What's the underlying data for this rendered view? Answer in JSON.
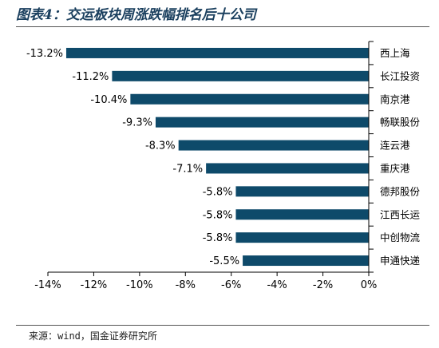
{
  "title": "图表4：交运板块周涨跌幅排名后十公司",
  "source": "来源：wind，国金证券研究所",
  "colors": {
    "bar": "#0e4a6a",
    "axis": "#000000",
    "title": "#1a3f5e"
  },
  "chart_data": {
    "type": "bar",
    "orientation": "horizontal",
    "title": "图表4：交运板块周涨跌幅排名后十公司",
    "xlabel": "",
    "ylabel": "",
    "xlim": [
      -14,
      0
    ],
    "grid": false,
    "legend": "none",
    "categories": [
      "西上海",
      "长江投资",
      "南京港",
      "畅联股份",
      "连云港",
      "重庆港",
      "德邦股份",
      "江西长运",
      "中创物流",
      "申通快递"
    ],
    "values": [
      -13.2,
      -11.2,
      -10.4,
      -9.3,
      -8.3,
      -7.1,
      -5.8,
      -5.8,
      -5.8,
      -5.5
    ],
    "value_labels": [
      "-13.2%",
      "-11.2%",
      "-10.4%",
      "-9.3%",
      "-8.3%",
      "-7.1%",
      "-5.8%",
      "-5.8%",
      "-5.8%",
      "-5.5%"
    ],
    "x_ticks": [
      -14,
      -12,
      -10,
      -8,
      -6,
      -4,
      -2,
      0
    ],
    "x_tick_labels": [
      "-14%",
      "-12%",
      "-10%",
      "-8%",
      "-6%",
      "-4%",
      "-2%",
      "0%"
    ]
  }
}
